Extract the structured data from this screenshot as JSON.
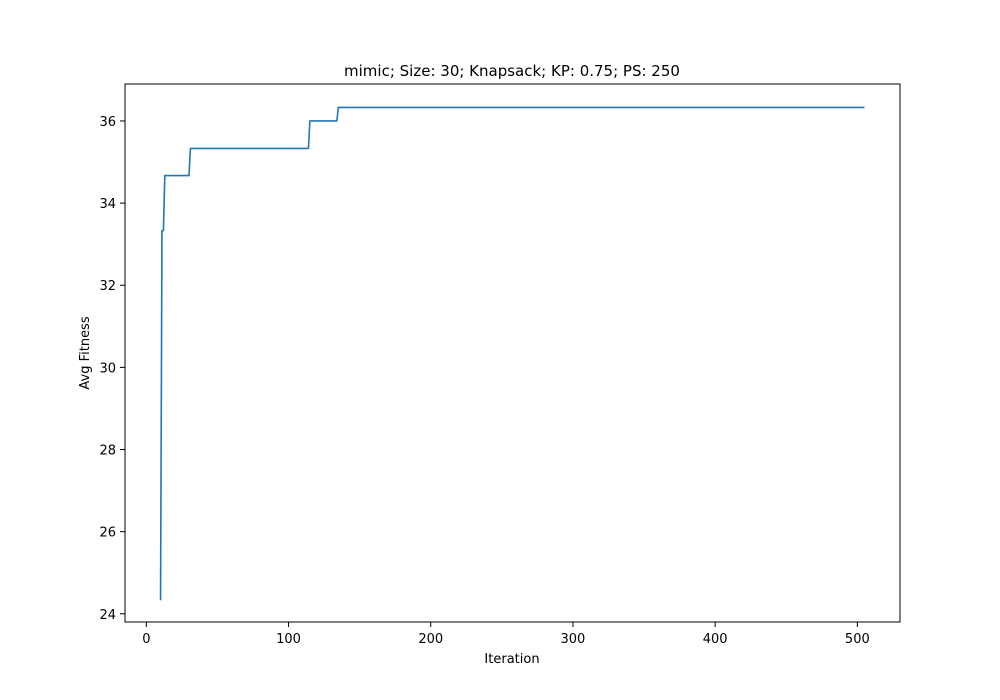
{
  "chart_data": {
    "type": "line",
    "title": "mimic; Size: 30; Knapsack; KP: 0.75; PS: 250",
    "xlabel": "Iteration",
    "ylabel": "Avg Fitness",
    "xlim": [
      -15,
      530
    ],
    "ylim": [
      23.8,
      36.9
    ],
    "xticks": [
      0,
      100,
      200,
      300,
      400,
      500
    ],
    "yticks": [
      24,
      26,
      28,
      30,
      32,
      34,
      36
    ],
    "grid": false,
    "line_color": "#1f77b4",
    "series": [
      {
        "x": [
          10,
          11,
          11,
          12,
          13,
          13,
          30,
          31,
          31,
          114,
          115,
          115,
          134,
          135,
          135,
          505
        ],
        "y": [
          24.33,
          33.33,
          33.33,
          33.33,
          34.67,
          34.67,
          34.67,
          35.33,
          35.33,
          35.33,
          36.0,
          36.0,
          36.0,
          36.33,
          36.33,
          36.33
        ]
      }
    ]
  }
}
